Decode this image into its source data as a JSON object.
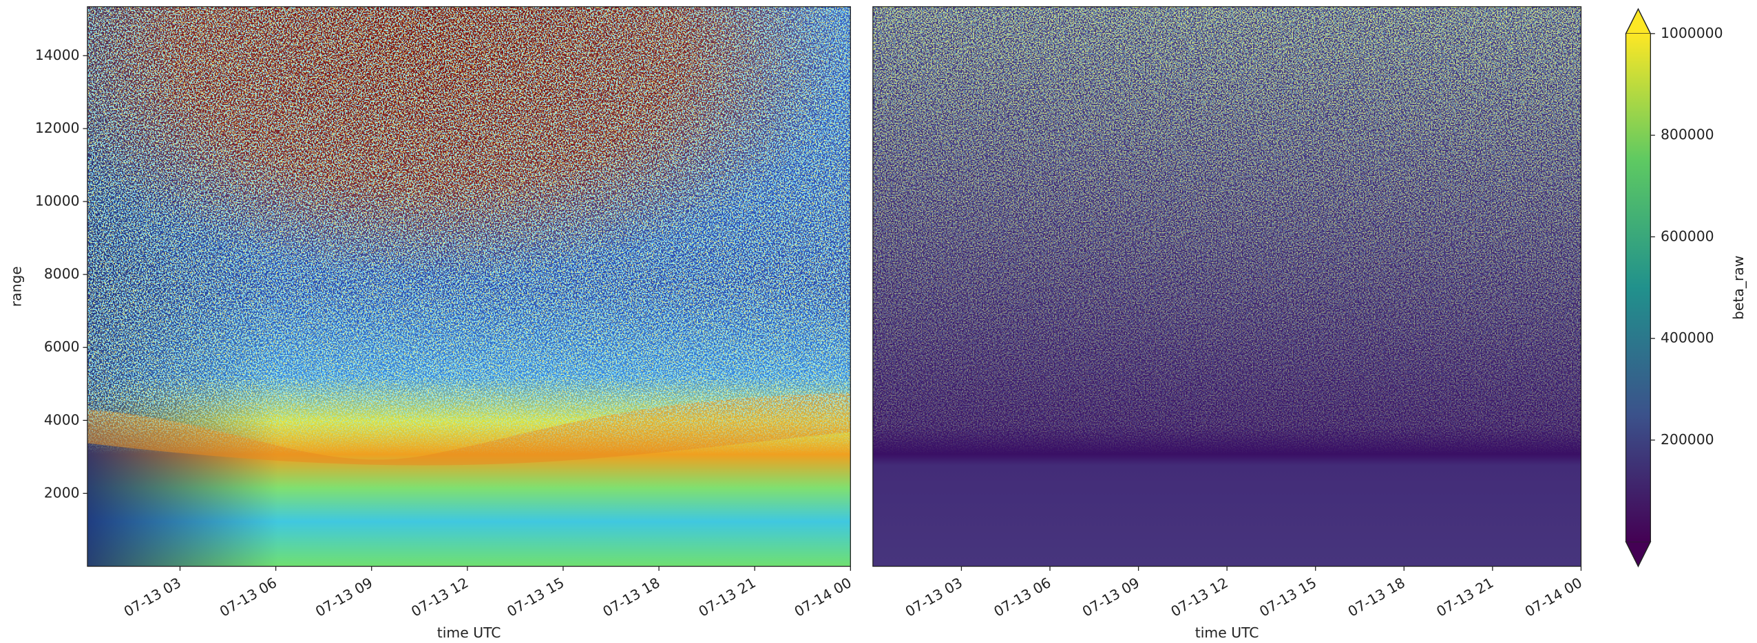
{
  "chart_data": [
    {
      "type": "heatmap",
      "colormap": "jet",
      "xlabel": "time UTC",
      "ylabel": "range",
      "xlim": [
        0.1,
        24
      ],
      "xticks": [
        {
          "value": 3,
          "label": "07-13 03"
        },
        {
          "value": 6,
          "label": "07-13 06"
        },
        {
          "value": 9,
          "label": "07-13 09"
        },
        {
          "value": 12,
          "label": "07-13 12"
        },
        {
          "value": 15,
          "label": "07-13 15"
        },
        {
          "value": 18,
          "label": "07-13 18"
        },
        {
          "value": 21,
          "label": "07-13 21"
        },
        {
          "value": 24,
          "label": "07-14 00"
        }
      ],
      "ylim": [
        0,
        15340
      ],
      "yticks": [
        2000,
        4000,
        6000,
        8000,
        10000,
        12000,
        14000
      ]
    },
    {
      "type": "heatmap",
      "colormap": "viridis",
      "xlabel": "time UTC",
      "xlim": [
        0,
        24
      ],
      "xticks": [
        {
          "value": 3,
          "label": "07-13 03"
        },
        {
          "value": 6,
          "label": "07-13 06"
        },
        {
          "value": 9,
          "label": "07-13 09"
        },
        {
          "value": 12,
          "label": "07-13 12"
        },
        {
          "value": 15,
          "label": "07-13 15"
        },
        {
          "value": 18,
          "label": "07-13 18"
        },
        {
          "value": 21,
          "label": "07-13 21"
        },
        {
          "value": 24,
          "label": "07-14 00"
        }
      ],
      "ylim": [
        0,
        15340
      ],
      "colorbar": {
        "label": "beta_raw",
        "lim": [
          0,
          1000000
        ],
        "ticks": [
          200000,
          400000,
          600000,
          800000,
          1000000
        ]
      }
    }
  ]
}
